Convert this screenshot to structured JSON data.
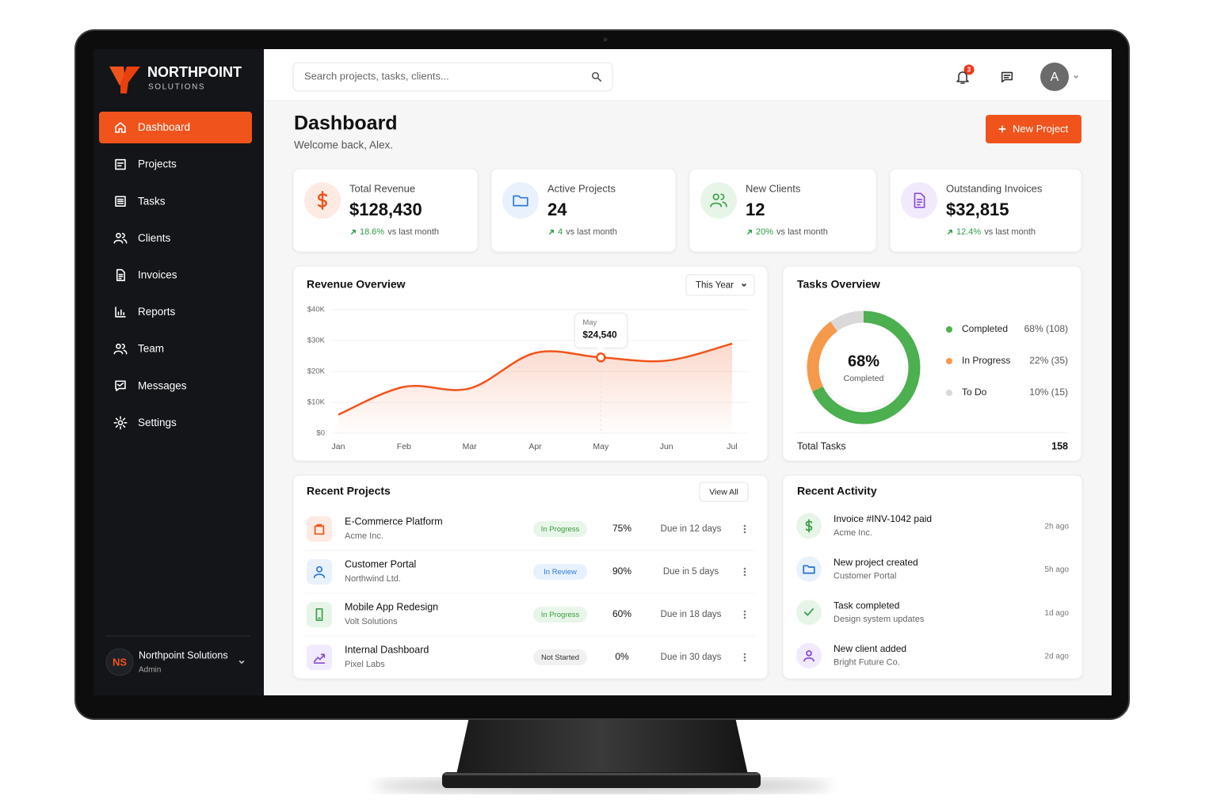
{
  "sidebar": {
    "brand": "NORTHPOINT",
    "brand_sub": "SOLUTIONS",
    "nav": [
      "Dashboard",
      "Projects",
      "Tasks",
      "Clients",
      "Invoices",
      "Reports",
      "Team",
      "Messages",
      "Settings"
    ],
    "user": {
      "initials": "NS",
      "name": "Northpoint Solutions",
      "role": "Admin"
    }
  },
  "header": {
    "search_placeholder": "Search projects, tasks, clients...",
    "notifications": 3,
    "avatar": "A"
  },
  "page": {
    "title": "Dashboard",
    "subtitle": "Welcome back, Alex.",
    "button": "New Project"
  },
  "stats": [
    {
      "label": "Total Revenue",
      "value": "$128,430",
      "change": "18.6%",
      "note": "vs last month"
    },
    {
      "label": "Active Projects",
      "value": "24",
      "change": "4",
      "note": "vs last month"
    },
    {
      "label": "New Clients",
      "value": "12",
      "change": "20%",
      "note": "vs last month"
    },
    {
      "label": "Outstanding Invoices",
      "value": "$32,815",
      "change": "12.4%",
      "note": "vs last month"
    }
  ],
  "revenue_chart": {
    "type": "line",
    "title": "Revenue Overview",
    "period": "This Year",
    "categories": [
      "Jan",
      "Feb",
      "Mar",
      "Apr",
      "May",
      "Jun",
      "Jul"
    ],
    "values": [
      6000,
      15000,
      14500,
      26000,
      24540,
      23500,
      29000
    ],
    "value_labels": [
      null,
      null,
      null,
      null,
      "$24,540",
      null,
      null
    ],
    "color": "#f0541c",
    "ylim": [
      0,
      40000
    ],
    "yticks": [
      {
        "value": 0,
        "label": "$0"
      },
      {
        "value": 10000,
        "label": "$10K"
      },
      {
        "value": 20000,
        "label": "$20K"
      },
      {
        "value": 30000,
        "label": "$30K"
      },
      {
        "value": 40000,
        "label": "$40K"
      }
    ]
  },
  "tasks_chart": {
    "type": "donut",
    "title": "Tasks Overview",
    "center_label": "68%",
    "center_text": "Completed",
    "categories": [
      "Completed",
      "In Progress",
      "To Do"
    ],
    "values": [
      68,
      22,
      10
    ],
    "value_labels": [
      "68% (108)",
      "22% (35)",
      "10% (15)"
    ],
    "colors": [
      "#4caf50",
      "#f5994a",
      "#d9d9d9"
    ],
    "total_label": "Total Tasks",
    "total": 158
  },
  "projects": {
    "title": "Recent Projects",
    "action": "View All",
    "rows": [
      {
        "name": "E-Commerce Platform",
        "client": "Acme Inc.",
        "status": "In Progress",
        "progress": "75%",
        "due": "Due in 12 days"
      },
      {
        "name": "Customer Portal",
        "client": "Northwind Ltd.",
        "status": "In Review",
        "progress": "90%",
        "due": "Due in 5 days"
      },
      {
        "name": "Mobile App Redesign",
        "client": "Volt Solutions",
        "status": "In Progress",
        "progress": "60%",
        "due": "Due in 18 days"
      },
      {
        "name": "Internal Dashboard",
        "client": "Pixel Labs",
        "status": "Not Started",
        "progress": "0%",
        "due": "Due in 30 days"
      }
    ]
  },
  "activity": {
    "title": "Recent Activity",
    "rows": [
      {
        "title": "Invoice #INV-1042 paid",
        "subtitle": "Acme Inc.",
        "time": "2h ago"
      },
      {
        "title": "New project created",
        "subtitle": "Customer Portal",
        "time": "5h ago"
      },
      {
        "title": "Task completed",
        "subtitle": "Design system updates",
        "time": "1d ago"
      },
      {
        "title": "New client added",
        "subtitle": "Bright Future Co.",
        "time": "2d ago"
      }
    ]
  }
}
